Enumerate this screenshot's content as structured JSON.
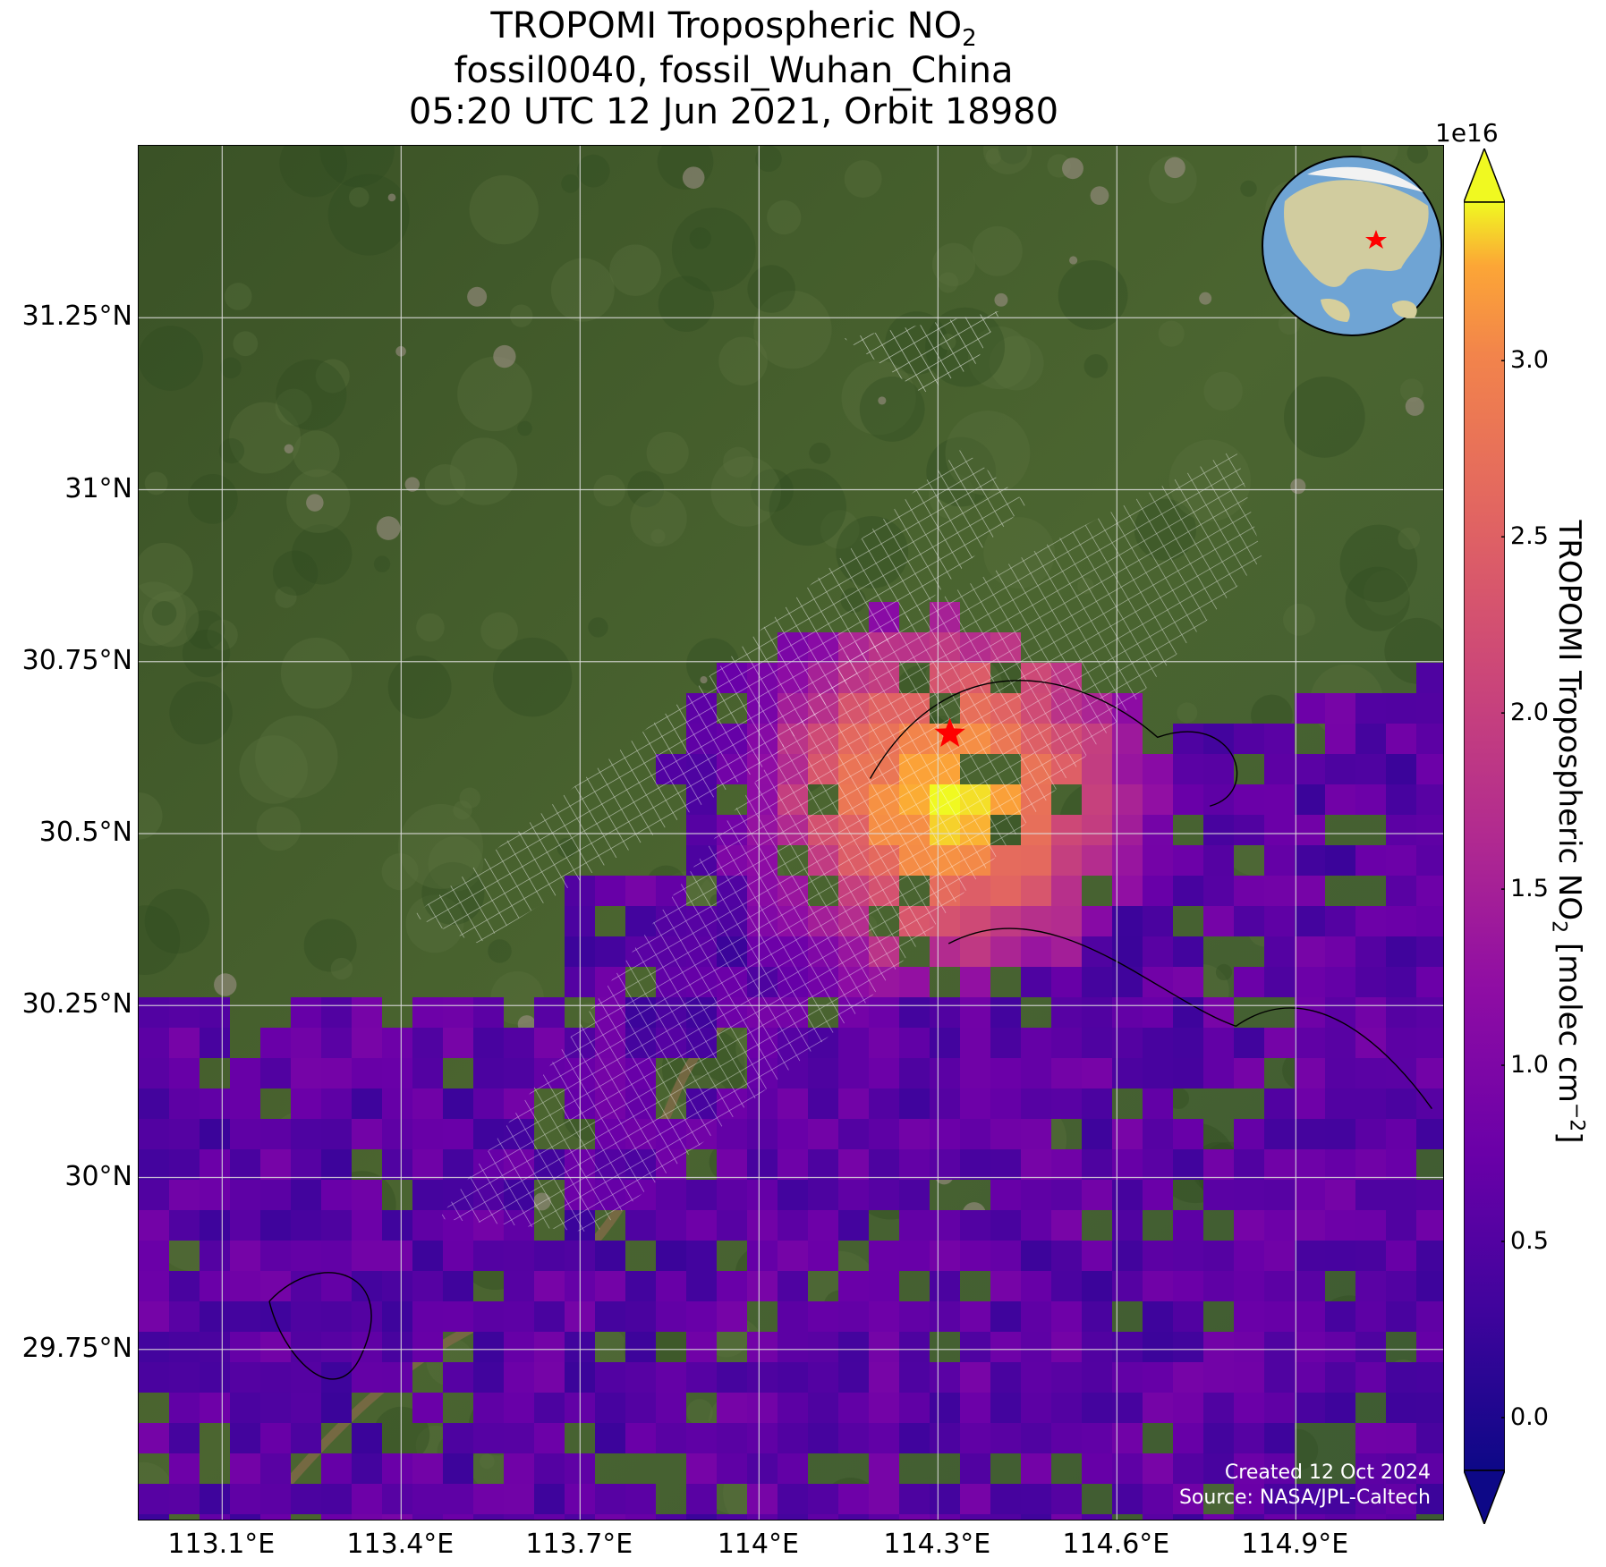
{
  "title": {
    "line1_main": "TROPOMI Tropospheric NO",
    "line1_sub": "2",
    "line2": "fossil0040, fossil_Wuhan_China",
    "line3": "05:20 UTC 12 Jun 2021, Orbit 18980"
  },
  "map": {
    "lat_ticks": [
      "31.25°N",
      "31°N",
      "30.75°N",
      "30.5°N",
      "30.25°N",
      "30°N",
      "29.75°N"
    ],
    "lon_ticks": [
      "113.1°E",
      "113.4°E",
      "113.7°E",
      "114°E",
      "114.3°E",
      "114.6°E",
      "114.9°E"
    ],
    "lat_values": [
      31.25,
      31.0,
      30.75,
      30.5,
      30.25,
      30.0,
      29.75
    ],
    "lon_values": [
      113.1,
      113.4,
      113.7,
      114.0,
      114.3,
      114.6,
      114.9
    ],
    "extent": {
      "lon_min": 112.96,
      "lon_max": 115.15,
      "lat_min": 29.5,
      "lat_max": 31.5
    },
    "target": {
      "name_shown_in_title": "fossil_Wuhan_China",
      "lon": 114.32,
      "lat": 30.645,
      "marker": "red-star"
    },
    "credits": {
      "created": "Created 12 Oct 2024",
      "source": "Source: NASA/JPL-Caltech"
    },
    "colors": {
      "land_base": "#3c5a2a",
      "grid": "#dddddd",
      "swath_grid": "#ffffff",
      "marker": "#ff0000"
    }
  },
  "colorbar": {
    "exponent": "1e16",
    "ticks": [
      "0.0",
      "0.5",
      "1.0",
      "1.5",
      "2.0",
      "2.5",
      "3.0"
    ],
    "tick_values": [
      0.0,
      0.5,
      1.0,
      1.5,
      2.0,
      2.5,
      3.0
    ],
    "vmin": -0.15,
    "vmax": 3.45,
    "colormap": "plasma",
    "extend": "both",
    "label_main": "TROPOMI Tropospheric NO",
    "label_sub": "2",
    "label_units": " [molec cm",
    "label_exp": "−2",
    "label_end": "]"
  },
  "inset": {
    "icon": "globe-locator-icon",
    "marker": "red-star"
  }
}
